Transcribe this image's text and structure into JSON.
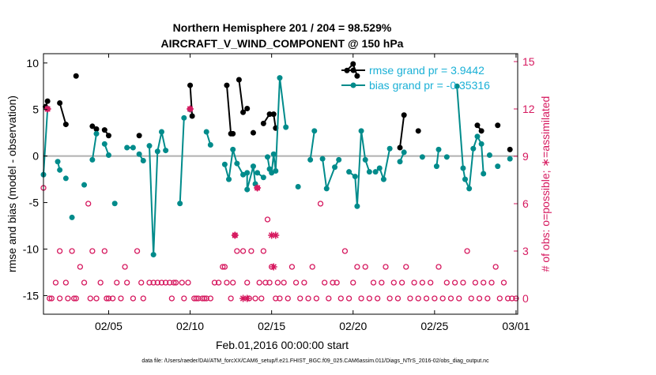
{
  "chart_data": {
    "type": "line",
    "title": "Northern Hemisphere 201 / 204 = 98.529%",
    "subtitle": "AIRCRAFT_V_WIND_COMPONENT @ 150 hPa",
    "xlabel": "Feb.01,2016 00:00:00 start",
    "ylabel": "rmse and bias (model - observation)",
    "y2label": "# of obs: o=possible; ∗=assimilated",
    "footnote": "data file: /Users/raeder/DAI/ATM_forcXX/CAM6_setup/f.e21.FHIST_BGC.f09_025.CAM6assim.011/Diags_NTrS_2016-02/obs_diag_output.nc",
    "xlim": [
      1.0,
      30.1
    ],
    "ylim": [
      -17,
      11
    ],
    "y2lim": [
      -1,
      15.5
    ],
    "x_tick_values": [
      5,
      10,
      15,
      20,
      25,
      30
    ],
    "x_tick_labels": [
      "02/05",
      "02/10",
      "02/15",
      "02/20",
      "02/25",
      "03/01"
    ],
    "y_ticks": [
      -15,
      -10,
      -5,
      0,
      5,
      10
    ],
    "y_tick_labels": [
      "-15",
      "-10",
      "-5",
      "0",
      "5",
      "10"
    ],
    "y2_ticks": [
      0,
      3,
      6,
      9,
      12,
      15
    ],
    "y2_tick_labels": [
      "0",
      "3",
      "6",
      "9",
      "12",
      "15"
    ],
    "colors": {
      "rmse": "#000000",
      "bias": "#008b8b",
      "obs": "#d6195f",
      "zero_line": "#b0b0b0",
      "legend_text": "#1ab0d6"
    },
    "legend": {
      "placement": "top-right",
      "entries": [
        {
          "name": "rmse",
          "label": "rmse grand pr = 3.9442"
        },
        {
          "name": "bias",
          "label": "bias grand pr = -0.35316"
        }
      ]
    },
    "series": [
      {
        "name": "rmse",
        "points": [
          [
            1.125,
            5.3
          ],
          [
            1.25,
            5.9
          ],
          null,
          [
            2.0,
            5.7
          ],
          [
            2.375,
            3.4
          ],
          null,
          [
            3.0,
            8.6
          ],
          null,
          [
            4.0,
            3.2
          ],
          [
            4.25,
            2.9
          ],
          null,
          [
            4.75,
            2.8
          ],
          [
            5.0,
            2.2
          ],
          null,
          [
            6.875,
            2.2
          ],
          null,
          [
            10.0,
            7.6
          ],
          [
            10.125,
            4.3
          ],
          null,
          [
            12.25,
            7.6
          ],
          [
            12.5,
            2.4
          ],
          [
            12.625,
            2.4
          ],
          null,
          [
            13.0,
            8.2
          ],
          [
            13.25,
            4.7
          ],
          [
            13.5,
            5.1
          ],
          null,
          [
            13.875,
            2.5
          ],
          null,
          [
            14.5,
            3.5
          ],
          [
            14.875,
            4.5
          ],
          [
            15.125,
            4.5
          ],
          [
            15.25,
            3.0
          ],
          null,
          [
            19.625,
            9.2
          ],
          [
            20.0,
            9.9
          ],
          [
            20.25,
            8.6
          ],
          null,
          [
            22.875,
            0.9
          ],
          [
            23.125,
            4.4
          ],
          null,
          [
            24.0,
            2.7
          ],
          null,
          [
            27.625,
            3.3
          ],
          [
            27.875,
            2.7
          ],
          null,
          [
            28.875,
            3.3
          ],
          null,
          [
            29.625,
            0.7
          ]
        ]
      },
      {
        "name": "bias",
        "points": [
          [
            1.0,
            -2.0
          ],
          [
            1.25,
            5.1
          ],
          null,
          [
            1.875,
            -0.6
          ],
          [
            2.0,
            -1.5
          ],
          null,
          [
            2.375,
            -2.4
          ],
          null,
          [
            2.75,
            -6.6
          ],
          null,
          [
            3.5,
            -3.1
          ],
          null,
          [
            4.0,
            -0.4
          ],
          [
            4.25,
            2.4
          ],
          null,
          [
            4.75,
            1.3
          ],
          [
            5.0,
            0.1
          ],
          null,
          [
            5.375,
            -5.1
          ],
          null,
          [
            6.125,
            0.9
          ],
          [
            6.5,
            0.9
          ],
          null,
          [
            6.875,
            0.2
          ],
          [
            7.125,
            -0.5
          ],
          null,
          [
            7.5,
            1.1
          ],
          [
            7.75,
            -10.6
          ],
          [
            8.0,
            0.5
          ],
          [
            8.25,
            2.6
          ],
          [
            8.5,
            0.6
          ],
          null,
          [
            9.375,
            -5.1
          ],
          [
            9.625,
            4.1
          ],
          null,
          [
            10.0,
            5.0
          ],
          null,
          [
            11.0,
            2.6
          ],
          [
            11.25,
            1.2
          ],
          null,
          [
            12.125,
            -0.9
          ],
          [
            12.375,
            -2.5
          ],
          [
            12.625,
            0.7
          ],
          [
            12.875,
            -0.8
          ],
          [
            13.25,
            -2.0
          ],
          [
            13.5,
            -1.8
          ],
          [
            13.5,
            -3.6
          ],
          [
            13.875,
            -1.1
          ],
          [
            14.0,
            -3.0
          ],
          null,
          [
            14.125,
            -1.8
          ],
          [
            14.5,
            -2.3
          ],
          null,
          [
            14.75,
            -0.1
          ],
          [
            14.875,
            -1.4
          ],
          [
            15.0,
            -1.8
          ],
          [
            15.125,
            0.2
          ],
          [
            15.25,
            -1.6
          ],
          [
            15.5,
            8.4
          ],
          [
            15.875,
            3.1
          ],
          null,
          [
            16.625,
            -3.3
          ],
          null,
          [
            17.375,
            -0.4
          ],
          [
            17.625,
            2.7
          ],
          null,
          [
            18.125,
            -0.3
          ],
          [
            18.375,
            -3.5
          ],
          [
            18.875,
            -1.2
          ],
          [
            19.125,
            -0.4
          ],
          null,
          [
            19.75,
            -1.7
          ],
          [
            20.125,
            -2.2
          ],
          [
            20.25,
            -5.4
          ],
          [
            20.5,
            2.7
          ],
          [
            20.75,
            -0.4
          ],
          [
            21.0,
            -1.7
          ],
          null,
          [
            21.375,
            -1.7
          ],
          [
            21.625,
            -1.3
          ],
          [
            21.875,
            -2.5
          ],
          [
            22.25,
            0.8
          ],
          null,
          [
            22.875,
            -0.6
          ],
          [
            23.125,
            0.4
          ],
          null,
          [
            24.25,
            -0.1
          ],
          null,
          [
            25.125,
            -1.1
          ],
          [
            25.25,
            0.7
          ],
          null,
          [
            25.75,
            -0.1
          ],
          null,
          [
            26.375,
            7.5
          ],
          [
            26.75,
            -1.3
          ],
          [
            26.875,
            -2.5
          ],
          [
            27.125,
            -3.5
          ],
          [
            27.375,
            0.8
          ],
          [
            27.625,
            2.1
          ],
          [
            27.875,
            1.3
          ],
          [
            28.0,
            -1.9
          ],
          null,
          [
            28.375,
            0.1
          ],
          null,
          [
            28.875,
            -1.1
          ],
          null,
          [
            29.625,
            -0.3
          ]
        ]
      }
    ],
    "obs_possible": [
      [
        1.0,
        7
      ],
      [
        1.25,
        12
      ],
      [
        1.375,
        0
      ],
      [
        1.5,
        0
      ],
      [
        1.75,
        1
      ],
      [
        2.0,
        0
      ],
      [
        2.0,
        3
      ],
      [
        2.375,
        1
      ],
      [
        2.5,
        0
      ],
      [
        2.75,
        3
      ],
      [
        2.875,
        0
      ],
      [
        3.0,
        0
      ],
      [
        3.25,
        2
      ],
      [
        3.5,
        1
      ],
      [
        3.75,
        6
      ],
      [
        3.875,
        0
      ],
      [
        4.0,
        3
      ],
      [
        4.25,
        0
      ],
      [
        4.5,
        1
      ],
      [
        4.75,
        3
      ],
      [
        4.875,
        0
      ],
      [
        5.0,
        0
      ],
      [
        5.25,
        0
      ],
      [
        5.5,
        1
      ],
      [
        5.75,
        0
      ],
      [
        6.0,
        2
      ],
      [
        6.125,
        1
      ],
      [
        6.5,
        0
      ],
      [
        6.75,
        3
      ],
      [
        7.0,
        1
      ],
      [
        7.125,
        0
      ],
      [
        7.5,
        1
      ],
      [
        7.75,
        1
      ],
      [
        8.0,
        1
      ],
      [
        8.25,
        1
      ],
      [
        8.5,
        1
      ],
      [
        8.75,
        1
      ],
      [
        8.875,
        0
      ],
      [
        9.0,
        1
      ],
      [
        9.125,
        1
      ],
      [
        9.5,
        1
      ],
      [
        9.625,
        0
      ],
      [
        9.875,
        1
      ],
      [
        10.0,
        12
      ],
      [
        10.25,
        0
      ],
      [
        10.375,
        0
      ],
      [
        10.5,
        0
      ],
      [
        10.75,
        0
      ],
      [
        10.875,
        0
      ],
      [
        11.0,
        0
      ],
      [
        11.25,
        0
      ],
      [
        11.5,
        1
      ],
      [
        11.75,
        1
      ],
      [
        12.0,
        2
      ],
      [
        12.125,
        2
      ],
      [
        12.25,
        1
      ],
      [
        12.5,
        0
      ],
      [
        12.625,
        1
      ],
      [
        12.75,
        4
      ],
      [
        12.875,
        3
      ],
      [
        13.25,
        3
      ],
      [
        13.5,
        1
      ],
      [
        13.625,
        0
      ],
      [
        13.75,
        3
      ],
      [
        14.0,
        0
      ],
      [
        14.125,
        7
      ],
      [
        14.25,
        1
      ],
      [
        14.375,
        0
      ],
      [
        14.5,
        3
      ],
      [
        14.625,
        1
      ],
      [
        14.75,
        5
      ],
      [
        14.875,
        1
      ],
      [
        15.0,
        2
      ],
      [
        15.25,
        0
      ],
      [
        15.375,
        1
      ],
      [
        15.5,
        0
      ],
      [
        15.75,
        1
      ],
      [
        16.0,
        0
      ],
      [
        16.25,
        2
      ],
      [
        16.5,
        1
      ],
      [
        16.75,
        0
      ],
      [
        17.0,
        1
      ],
      [
        17.25,
        0
      ],
      [
        17.5,
        2
      ],
      [
        17.75,
        0
      ],
      [
        18.0,
        6
      ],
      [
        18.25,
        1
      ],
      [
        18.5,
        0
      ],
      [
        18.75,
        1
      ],
      [
        19.0,
        1
      ],
      [
        19.25,
        0
      ],
      [
        19.5,
        3
      ],
      [
        19.75,
        0
      ],
      [
        20.0,
        1
      ],
      [
        20.25,
        2
      ],
      [
        20.5,
        0
      ],
      [
        20.75,
        2
      ],
      [
        21.0,
        0
      ],
      [
        21.25,
        1
      ],
      [
        21.5,
        0
      ],
      [
        21.75,
        1
      ],
      [
        22.0,
        2
      ],
      [
        22.25,
        0
      ],
      [
        22.5,
        1
      ],
      [
        22.75,
        0
      ],
      [
        23.0,
        1
      ],
      [
        23.25,
        2
      ],
      [
        23.5,
        0
      ],
      [
        23.75,
        1
      ],
      [
        24.0,
        0
      ],
      [
        24.25,
        1
      ],
      [
        24.5,
        0
      ],
      [
        24.75,
        1
      ],
      [
        25.0,
        0
      ],
      [
        25.25,
        2
      ],
      [
        25.5,
        0
      ],
      [
        25.75,
        1
      ],
      [
        26.0,
        0
      ],
      [
        26.25,
        1
      ],
      [
        26.5,
        0
      ],
      [
        26.75,
        1
      ],
      [
        27.0,
        3
      ],
      [
        27.25,
        0
      ],
      [
        27.5,
        1
      ],
      [
        27.75,
        0
      ],
      [
        28.0,
        1
      ],
      [
        28.25,
        0
      ],
      [
        28.5,
        1
      ],
      [
        28.75,
        2
      ],
      [
        29.0,
        0
      ],
      [
        29.25,
        1
      ],
      [
        29.5,
        0
      ],
      [
        29.75,
        0
      ],
      [
        30.0,
        0
      ]
    ],
    "obs_assimilated": [
      [
        1.25,
        12
      ],
      [
        10.0,
        12
      ],
      [
        12.75,
        4
      ],
      [
        13.25,
        0
      ],
      [
        13.5,
        0
      ],
      [
        14.125,
        7
      ],
      [
        15.0,
        4
      ],
      [
        15.125,
        2
      ],
      [
        15.25,
        4
      ]
    ]
  }
}
